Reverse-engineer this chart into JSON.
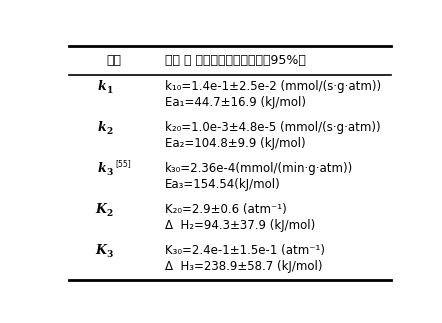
{
  "header_col1": "参数",
  "header_col2": "数値 ＆ 置信区间（置信水平，95%）",
  "rows": [
    {
      "param_main": "k",
      "param_sub": "1",
      "param_sup": "",
      "values": [
        "k₁₀=1.4e-1±2.5e-2 (mmol/(s·g·atm))",
        "Ea₁=44.7±16.9 (kJ/mol)"
      ]
    },
    {
      "param_main": "k",
      "param_sub": "2",
      "param_sup": "",
      "values": [
        "k₂₀=1.0e-3±4.8e-5 (mmol/(s·g·atm))",
        "Ea₂=104.8±9.9 (kJ/mol)"
      ]
    },
    {
      "param_main": "k",
      "param_sub": "3",
      "param_sup": "[55]",
      "values": [
        "k₃₀=2.36e-4(mmol/(min·g·atm))",
        "Ea₃=154.54(kJ/mol)"
      ]
    },
    {
      "param_main": "K",
      "param_sub": "2",
      "param_sup": "",
      "values": [
        "K₂₀=2.9±0.6 (atm⁻¹)",
        "Δ  H₂=94.3±37.9 (kJ/mol)"
      ]
    },
    {
      "param_main": "K",
      "param_sub": "3",
      "param_sup": "",
      "values": [
        "K₃₀=2.4e-1±1.5e-1 (atm⁻¹)",
        "Δ  H₃=238.9±58.7 (kJ/mol)"
      ]
    }
  ],
  "bg_color": "#ffffff",
  "text_color": "#000000",
  "line_color": "#000000",
  "header_fontsize": 9,
  "body_fontsize": 8.5,
  "param_fontsize": 9
}
